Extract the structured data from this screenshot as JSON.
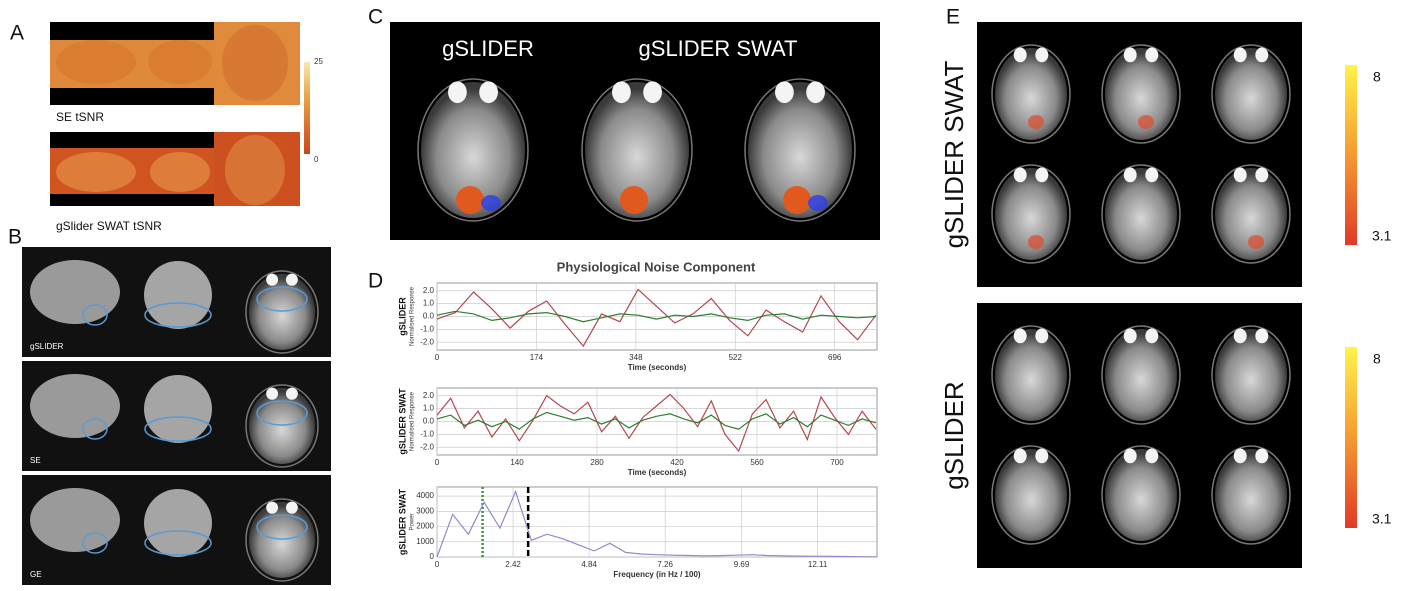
{
  "panels": {
    "a": {
      "label": "A",
      "captions": [
        "SE  tSNR",
        "gSlider SWAT tSNR"
      ],
      "colorbar": {
        "max": 25,
        "min": 0
      }
    },
    "b": {
      "label": "B",
      "captions": [
        "gSLIDER",
        "SE",
        "GE"
      ]
    },
    "c": {
      "label": "C",
      "titles": [
        "gSLIDER",
        "gSLIDER SWAT"
      ]
    },
    "d": {
      "label": "D",
      "title": "Physiological Noise Component",
      "charts": [
        {
          "type": "line",
          "ylabel": "gSLIDER",
          "ysublabel": "Normalised Response",
          "xlabel": "Time (seconds)",
          "xlim": [
            0,
            770
          ],
          "xticks": [
            0,
            174,
            348,
            522,
            696
          ],
          "ylim": [
            -2.6,
            2.6
          ],
          "yticks": [
            {
              "value": 2,
              "label": "2.0"
            },
            {
              "value": 1,
              "label": "1.0"
            },
            {
              "value": 0,
              "label": "0.0"
            },
            {
              "value": -1,
              "label": "-1.0"
            },
            {
              "value": -2,
              "label": "-2.0"
            }
          ],
          "x": [
            0,
            32,
            64,
            96,
            128,
            160,
            192,
            224,
            256,
            288,
            320,
            352,
            384,
            416,
            448,
            480,
            512,
            544,
            576,
            608,
            640,
            672,
            704,
            736,
            768
          ],
          "series": [
            {
              "color": "#b5474f",
              "values": [
                -0.2,
                0.3,
                1.9,
                0.6,
                -0.9,
                0.4,
                1.2,
                -0.6,
                -2.3,
                0.2,
                -0.4,
                2.1,
                0.8,
                -0.5,
                0.2,
                1.4,
                -0.3,
                -1.5,
                0.5,
                -0.4,
                -1.2,
                1.6,
                -0.4,
                -1.8,
                0.1
              ]
            },
            {
              "color": "#2e7d32",
              "values": [
                0.1,
                0.4,
                0.2,
                -0.3,
                -0.1,
                0.2,
                0.3,
                0.0,
                -0.4,
                -0.1,
                0.2,
                0.1,
                -0.2,
                0.1,
                0.0,
                0.2,
                -0.1,
                -0.3,
                0.1,
                0.2,
                -0.2,
                0.1,
                0.0,
                -0.1,
                0.0
              ]
            }
          ]
        },
        {
          "type": "line",
          "ylabel": "gSLIDER SWAT",
          "ysublabel": "Normalised Response",
          "xlabel": "Time (seconds)",
          "xlim": [
            0,
            770
          ],
          "xticks": [
            0,
            140,
            280,
            420,
            560,
            700
          ],
          "ylim": [
            -2.6,
            2.6
          ],
          "yticks": [
            {
              "value": 2,
              "label": "2.0"
            },
            {
              "value": 1,
              "label": "1.0"
            },
            {
              "value": 0,
              "label": "0.0"
            },
            {
              "value": -1,
              "label": "-1.0"
            },
            {
              "value": -2,
              "label": "-2.0"
            }
          ],
          "x": [
            0,
            24,
            48,
            72,
            96,
            120,
            144,
            168,
            192,
            216,
            240,
            264,
            288,
            312,
            336,
            360,
            384,
            408,
            432,
            456,
            480,
            504,
            528,
            552,
            576,
            600,
            624,
            648,
            672,
            696,
            720,
            744,
            768
          ],
          "series": [
            {
              "color": "#b5474f",
              "values": [
                0.5,
                1.8,
                -0.5,
                0.8,
                -1.2,
                0.2,
                -1.5,
                0.1,
                2.0,
                1.2,
                0.6,
                1.5,
                -0.8,
                0.4,
                -1.3,
                0.3,
                1.2,
                2.1,
                1.0,
                -0.4,
                1.6,
                -1.0,
                -2.3,
                0.6,
                1.7,
                -0.5,
                0.8,
                -1.4,
                1.9,
                0.3,
                -1.0,
                0.8,
                -0.6
              ]
            },
            {
              "color": "#2e7d32",
              "values": [
                0.2,
                0.5,
                -0.3,
                0.1,
                -0.4,
                0.0,
                -0.6,
                0.2,
                0.7,
                0.4,
                0.1,
                0.3,
                -0.2,
                0.2,
                -0.5,
                0.1,
                0.4,
                0.6,
                0.2,
                -0.1,
                0.5,
                -0.3,
                -0.6,
                0.2,
                0.6,
                -0.2,
                0.3,
                -0.4,
                0.5,
                0.1,
                -0.3,
                0.2,
                -0.1
              ]
            }
          ]
        },
        {
          "type": "line",
          "ylabel": "gSLIDER SWAT",
          "ysublabel": "Power",
          "xlabel": "Frequency (in Hz / 100)",
          "xlim": [
            0,
            14
          ],
          "xticks": [
            0,
            2.42,
            4.84,
            7.26,
            9.69,
            12.11
          ],
          "ylim": [
            0,
            4600
          ],
          "yticks": [
            0,
            1000,
            2000,
            3000,
            4000
          ],
          "vlines": [
            {
              "x": 1.45,
              "color": "#2e9d3a"
            },
            {
              "x": 2.9,
              "color": "#000000"
            }
          ],
          "x": [
            0,
            0.5,
            1,
            1.5,
            2,
            2.5,
            3,
            3.5,
            4,
            4.5,
            5,
            5.5,
            6,
            6.5,
            7,
            7.5,
            8,
            8.5,
            9,
            9.5,
            10,
            10.5,
            11,
            11.5,
            12,
            12.5,
            13,
            13.5,
            14
          ],
          "series": [
            {
              "color": "#8c8ccf",
              "values": [
                0,
                2800,
                1500,
                3600,
                1900,
                4300,
                1100,
                1500,
                1200,
                800,
                400,
                900,
                300,
                200,
                150,
                120,
                100,
                80,
                90,
                120,
                150,
                100,
                80,
                60,
                50,
                40,
                30,
                20,
                10
              ]
            }
          ]
        }
      ]
    },
    "e": {
      "label": "E",
      "rows": [
        {
          "title": "gSLIDER SWAT",
          "colorbar": {
            "max": 8,
            "min": 3.1
          }
        },
        {
          "title": "gSLIDER",
          "colorbar": {
            "max": 8,
            "min": 3.1
          }
        }
      ]
    }
  }
}
